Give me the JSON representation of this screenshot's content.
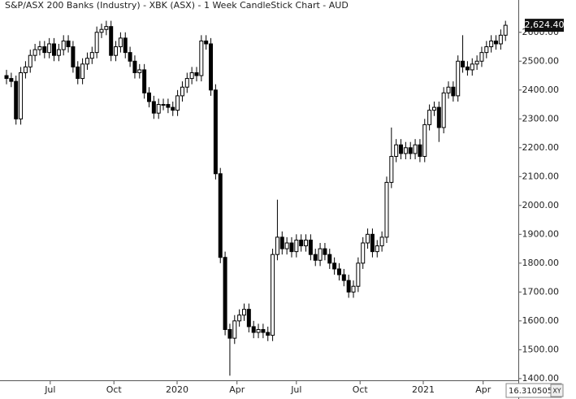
{
  "chart_data": {
    "type": "candlestick",
    "title": "S&P/ASX 200 Banks (Industry) - XBK (ASX) - 1 Week CandleStick Chart - AUD",
    "open": [
      2450,
      2440,
      2430,
      2300,
      2460,
      2480,
      2520,
      2540,
      2550,
      2530,
      2560,
      2520,
      2540,
      2570,
      2550,
      2480,
      2440,
      2490,
      2510,
      2530,
      2600,
      2610,
      2620,
      2520,
      2550,
      2580,
      2530,
      2500,
      2460,
      2470,
      2390,
      2360,
      2320,
      2350,
      2350,
      2340,
      2330,
      2380,
      2410,
      2440,
      2460,
      2450,
      2570,
      2560,
      2400,
      2110,
      1820,
      1570,
      1540,
      1600,
      1620,
      1640,
      1580,
      1560,
      1570,
      1560,
      1550,
      1830,
      1890,
      1850,
      1870,
      1840,
      1880,
      1860,
      1880,
      1830,
      1810,
      1850,
      1830,
      1800,
      1780,
      1760,
      1740,
      1700,
      1720,
      1800,
      1870,
      1900,
      1840,
      1860,
      1890,
      2080,
      2170,
      2210,
      2180,
      2200,
      2180,
      2210,
      2170,
      2280,
      2330,
      2340,
      2270,
      2390,
      2410,
      2380,
      2500,
      2480,
      2470,
      2490,
      2500,
      2530,
      2550,
      2570,
      2560,
      2590
    ],
    "high": [
      2470,
      2460,
      2450,
      2480,
      2500,
      2540,
      2560,
      2570,
      2570,
      2580,
      2580,
      2560,
      2590,
      2590,
      2570,
      2500,
      2510,
      2530,
      2550,
      2620,
      2630,
      2640,
      2640,
      2570,
      2600,
      2600,
      2550,
      2520,
      2490,
      2490,
      2410,
      2380,
      2370,
      2370,
      2370,
      2360,
      2400,
      2430,
      2460,
      2480,
      2480,
      2590,
      2590,
      2580,
      2420,
      2130,
      1840,
      1590,
      1620,
      1640,
      1660,
      1660,
      1600,
      1590,
      1590,
      1580,
      1850,
      2020,
      1910,
      1890,
      1890,
      1900,
      1900,
      1900,
      1900,
      1850,
      1870,
      1870,
      1850,
      1820,
      1800,
      1780,
      1760,
      1740,
      1820,
      1890,
      1920,
      1920,
      1880,
      1910,
      2100,
      2270,
      2230,
      2230,
      2220,
      2220,
      2230,
      2230,
      2300,
      2350,
      2360,
      2360,
      2410,
      2430,
      2430,
      2520,
      2590,
      2500,
      2510,
      2520,
      2550,
      2570,
      2590,
      2590,
      2610,
      2640
    ],
    "low": [
      2420,
      2410,
      2280,
      2280,
      2440,
      2460,
      2500,
      2520,
      2510,
      2510,
      2500,
      2500,
      2520,
      2530,
      2460,
      2420,
      2420,
      2470,
      2490,
      2510,
      2580,
      2590,
      2500,
      2500,
      2530,
      2510,
      2480,
      2440,
      2440,
      2370,
      2340,
      2300,
      2300,
      2330,
      2320,
      2310,
      2310,
      2360,
      2390,
      2420,
      2430,
      2430,
      2540,
      2380,
      2090,
      1800,
      1550,
      1410,
      1520,
      1580,
      1600,
      1560,
      1540,
      1540,
      1540,
      1530,
      1530,
      1810,
      1830,
      1830,
      1820,
      1820,
      1840,
      1840,
      1810,
      1790,
      1790,
      1810,
      1780,
      1760,
      1740,
      1720,
      1680,
      1680,
      1700,
      1780,
      1850,
      1820,
      1820,
      1840,
      1870,
      2060,
      2150,
      2160,
      2160,
      2160,
      2160,
      2150,
      2150,
      2260,
      2310,
      2220,
      2250,
      2370,
      2360,
      2360,
      2460,
      2450,
      2450,
      2470,
      2480,
      2510,
      2530,
      2540,
      2540,
      2570
    ],
    "close": [
      2440,
      2430,
      2300,
      2460,
      2480,
      2520,
      2540,
      2550,
      2530,
      2560,
      2520,
      2540,
      2570,
      2550,
      2480,
      2440,
      2490,
      2510,
      2530,
      2600,
      2610,
      2620,
      2520,
      2550,
      2580,
      2530,
      2500,
      2460,
      2470,
      2390,
      2360,
      2320,
      2350,
      2350,
      2340,
      2330,
      2380,
      2410,
      2440,
      2460,
      2450,
      2570,
      2560,
      2400,
      2110,
      1820,
      1570,
      1540,
      1600,
      1620,
      1640,
      1580,
      1560,
      1570,
      1560,
      1550,
      1830,
      1890,
      1850,
      1870,
      1840,
      1880,
      1860,
      1880,
      1830,
      1810,
      1850,
      1830,
      1800,
      1780,
      1760,
      1740,
      1700,
      1720,
      1800,
      1870,
      1900,
      1840,
      1860,
      1890,
      2080,
      2170,
      2210,
      2180,
      2200,
      2180,
      2210,
      2170,
      2280,
      2330,
      2340,
      2270,
      2390,
      2410,
      2380,
      2500,
      2480,
      2470,
      2490,
      2500,
      2530,
      2550,
      2570,
      2560,
      2590,
      2624.4
    ],
    "up_color": "#ffffff",
    "down_color": "#000000",
    "last_price": {
      "value": 2624.4,
      "label": "2,624.40"
    },
    "ylim": [
      1394,
      2712
    ],
    "yticks": [
      {
        "value": 1400,
        "label": "1400.00"
      },
      {
        "value": 1500,
        "label": "1500.00"
      },
      {
        "value": 1600,
        "label": "1600.00"
      },
      {
        "value": 1700,
        "label": "1700.00"
      },
      {
        "value": 1800,
        "label": "1800.00"
      },
      {
        "value": 1900,
        "label": "1900.00"
      },
      {
        "value": 2000,
        "label": "2000.00"
      },
      {
        "value": 2100,
        "label": "2100.00"
      },
      {
        "value": 2200,
        "label": "2200.00"
      },
      {
        "value": 2300,
        "label": "2300.00"
      },
      {
        "value": 2400,
        "label": "2400.00"
      },
      {
        "value": 2500,
        "label": "2500.00"
      },
      {
        "value": 2600,
        "label": "2600.00"
      }
    ],
    "xlim": [
      -1.37,
      107.7
    ],
    "xticks": [
      {
        "value": 9.2,
        "label": "Jul"
      },
      {
        "value": 22.6,
        "label": "Oct"
      },
      {
        "value": 35.9,
        "label": "2020"
      },
      {
        "value": 48.5,
        "label": "Apr"
      },
      {
        "value": 61,
        "label": "Jul"
      },
      {
        "value": 74.4,
        "label": "Oct"
      },
      {
        "value": 87.7,
        "label": "2021"
      },
      {
        "value": 100.3,
        "label": "Apr"
      }
    ],
    "corner_value": "16.310505",
    "corner_button": "XY"
  }
}
